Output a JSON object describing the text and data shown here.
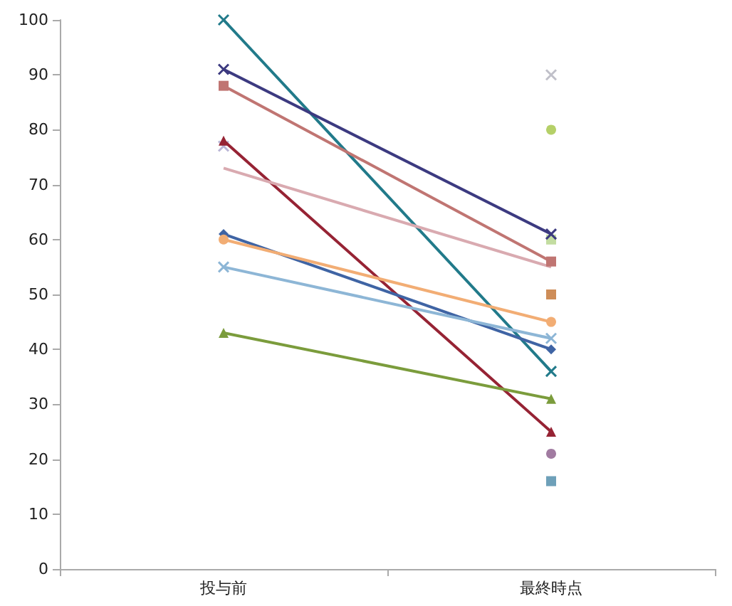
{
  "chart_data": {
    "type": "line",
    "categories": [
      "投与前",
      "最終時点"
    ],
    "ylim": [
      0,
      100
    ],
    "yticks": [
      0,
      10,
      20,
      30,
      40,
      50,
      60,
      70,
      80,
      90,
      100
    ],
    "grid": false,
    "series": [
      {
        "color": "#217a8a",
        "marker": "cross",
        "values": [
          100,
          36
        ]
      },
      {
        "color": "#3c3a80",
        "marker": "cross",
        "values": [
          91,
          61
        ]
      },
      {
        "color": "#c07572",
        "marker": "square",
        "values": [
          88,
          56
        ]
      },
      {
        "color": "#962334",
        "marker": "triangle",
        "values": [
          78,
          25
        ]
      },
      {
        "color": "#d9aab0",
        "marker": "none",
        "values": [
          73,
          55
        ]
      },
      {
        "color": "#3f64a4",
        "marker": "diamond",
        "values": [
          61,
          40
        ]
      },
      {
        "color": "#f2ad74",
        "marker": "circle",
        "values": [
          60,
          45
        ]
      },
      {
        "color": "#8db6d6",
        "marker": "cross",
        "values": [
          55,
          42
        ]
      },
      {
        "color": "#7b9c3c",
        "marker": "triangle",
        "values": [
          43,
          31
        ]
      },
      {
        "type": "scatter",
        "color": "#a9a2cc",
        "marker": "cross",
        "values": [
          77,
          null
        ]
      },
      {
        "type": "scatter",
        "color": "#b0b0bc",
        "marker": "cross",
        "values": [
          null,
          90
        ]
      },
      {
        "type": "scatter",
        "color": "#a2c442",
        "marker": "circle",
        "values": [
          null,
          80
        ]
      },
      {
        "type": "scatter",
        "color": "#b4d48a",
        "marker": "square",
        "values": [
          null,
          60
        ]
      },
      {
        "type": "scatter",
        "color": "#c2702e",
        "marker": "square",
        "values": [
          null,
          50
        ]
      },
      {
        "type": "scatter",
        "color": "#8a5a8a",
        "marker": "circle",
        "values": [
          null,
          21
        ]
      },
      {
        "type": "scatter",
        "color": "#4a88a8",
        "marker": "square",
        "values": [
          null,
          16
        ]
      }
    ]
  }
}
